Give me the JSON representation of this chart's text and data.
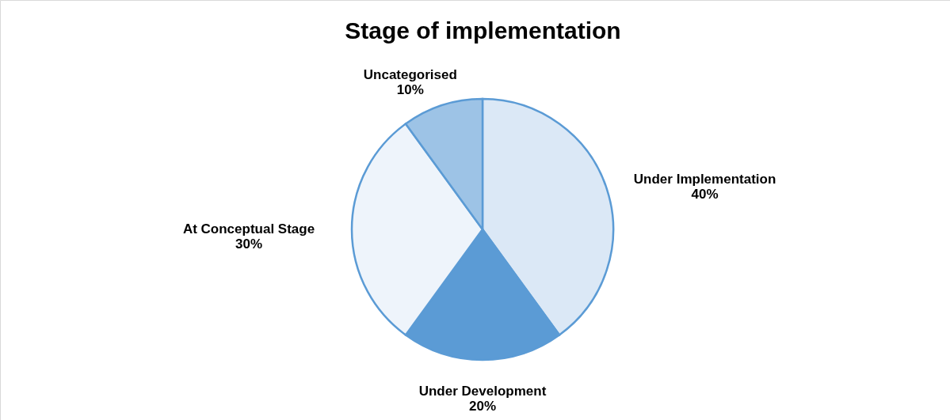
{
  "chart_data": {
    "type": "pie",
    "title": "Stage of implementation",
    "categories": [
      "Under Implementation",
      "Under Development",
      "At Conceptual Stage",
      "Uncategorised"
    ],
    "values": [
      40,
      20,
      30,
      10
    ],
    "value_labels": [
      "40%",
      "20%",
      "30%",
      "10%"
    ],
    "colors": [
      "#dbe8f6",
      "#5b9bd5",
      "#eef4fb",
      "#9dc3e6"
    ]
  }
}
